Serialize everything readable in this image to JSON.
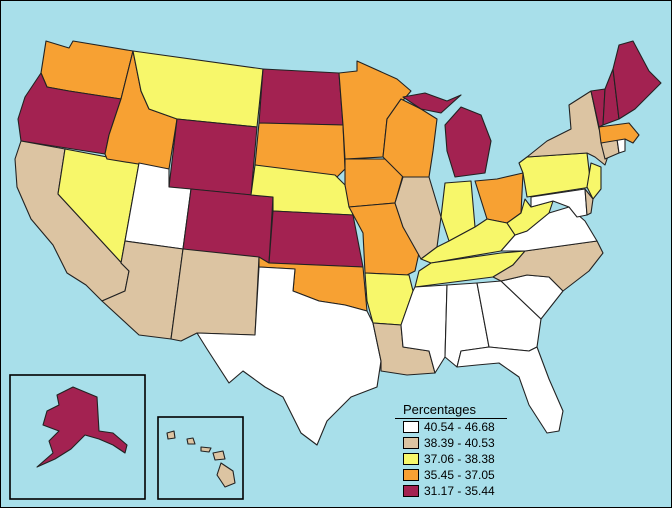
{
  "legend": {
    "title": "Percentages",
    "classes": [
      {
        "range": "40.54 - 46.68",
        "color": "#ffffff"
      },
      {
        "range": "38.39 - 40.53",
        "color": "#dcc4a2"
      },
      {
        "range": "37.06 - 38.38",
        "color": "#f7f76a"
      },
      {
        "range": "35.45 - 37.05",
        "color": "#f7a133"
      },
      {
        "range": "31.17 - 35.44",
        "color": "#a32251"
      }
    ]
  },
  "states": [
    {
      "abbr": "WA",
      "class": 3
    },
    {
      "abbr": "OR",
      "class": 4
    },
    {
      "abbr": "CA",
      "class": 1
    },
    {
      "abbr": "NV",
      "class": 2
    },
    {
      "abbr": "ID",
      "class": 3
    },
    {
      "abbr": "MT",
      "class": 2
    },
    {
      "abbr": "WY",
      "class": 4
    },
    {
      "abbr": "UT",
      "class": 0
    },
    {
      "abbr": "AZ",
      "class": 1
    },
    {
      "abbr": "CO",
      "class": 4
    },
    {
      "abbr": "NM",
      "class": 1
    },
    {
      "abbr": "ND",
      "class": 4
    },
    {
      "abbr": "SD",
      "class": 3
    },
    {
      "abbr": "NE",
      "class": 2
    },
    {
      "abbr": "KS",
      "class": 4
    },
    {
      "abbr": "OK",
      "class": 3
    },
    {
      "abbr": "TX",
      "class": 0
    },
    {
      "abbr": "MN",
      "class": 3
    },
    {
      "abbr": "IA",
      "class": 3
    },
    {
      "abbr": "MO",
      "class": 3
    },
    {
      "abbr": "AR",
      "class": 2
    },
    {
      "abbr": "LA",
      "class": 1
    },
    {
      "abbr": "WI",
      "class": 3
    },
    {
      "abbr": "IL",
      "class": 1
    },
    {
      "abbr": "MI",
      "class": 4
    },
    {
      "abbr": "IN",
      "class": 2
    },
    {
      "abbr": "OH",
      "class": 3
    },
    {
      "abbr": "KY",
      "class": 2
    },
    {
      "abbr": "TN",
      "class": 2
    },
    {
      "abbr": "MS",
      "class": 0
    },
    {
      "abbr": "AL",
      "class": 0
    },
    {
      "abbr": "GA",
      "class": 0
    },
    {
      "abbr": "FL",
      "class": 0
    },
    {
      "abbr": "SC",
      "class": 0
    },
    {
      "abbr": "NC",
      "class": 1
    },
    {
      "abbr": "VA",
      "class": 0
    },
    {
      "abbr": "WV",
      "class": 2
    },
    {
      "abbr": "PA",
      "class": 2
    },
    {
      "abbr": "NY",
      "class": 1
    },
    {
      "abbr": "NJ",
      "class": 2
    },
    {
      "abbr": "DE",
      "class": 1
    },
    {
      "abbr": "MD",
      "class": 0
    },
    {
      "abbr": "CT",
      "class": 1
    },
    {
      "abbr": "RI",
      "class": 0
    },
    {
      "abbr": "MA",
      "class": 3
    },
    {
      "abbr": "VT",
      "class": 4
    },
    {
      "abbr": "NH",
      "class": 4
    },
    {
      "abbr": "ME",
      "class": 4
    },
    {
      "abbr": "AK",
      "class": 4
    },
    {
      "abbr": "HI",
      "class": 1
    }
  ]
}
